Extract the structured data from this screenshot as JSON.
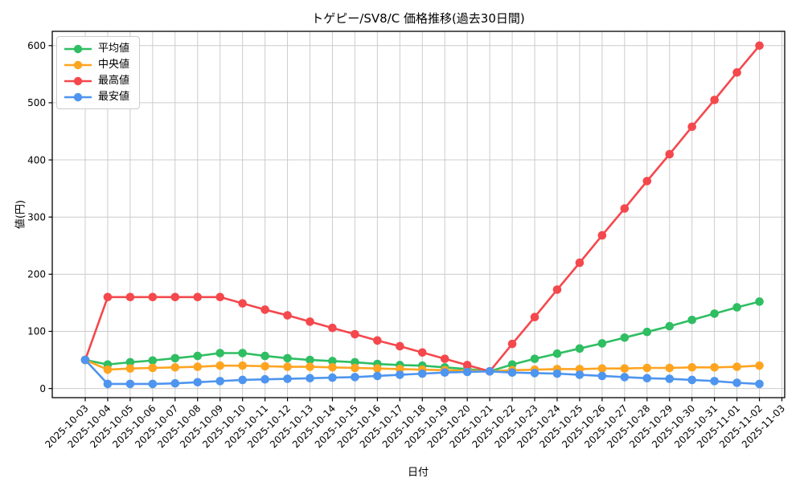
{
  "chart_data": {
    "type": "line",
    "title": "トゲピー/SV8/C 価格推移(過去30日間)",
    "xlabel": "日付",
    "ylabel": "値(円)",
    "grid": true,
    "legend_position": "upper left",
    "yticks": [
      0,
      100,
      200,
      300,
      400,
      500,
      600
    ],
    "ylim": [
      -16,
      625
    ],
    "x_tick_labels": [
      "2025-10-03",
      "2025-10-04",
      "2025-10-05",
      "2025-10-06",
      "2025-10-07",
      "2025-10-08",
      "2025-10-09",
      "2025-10-10",
      "2025-10-11",
      "2025-10-12",
      "2025-10-13",
      "2025-10-14",
      "2025-10-15",
      "2025-10-16",
      "2025-10-17",
      "2025-10-18",
      "2025-10-19",
      "2025-10-20",
      "2025-10-21",
      "2025-10-22",
      "2025-10-23",
      "2025-10-24",
      "2025-10-25",
      "2025-10-26",
      "2025-10-27",
      "2025-10-28",
      "2025-10-29",
      "2025-10-30",
      "2025-10-31",
      "2025-11-01",
      "2025-11-02",
      "2025-11-03"
    ],
    "categories": [
      "2025-10-03",
      "2025-10-04",
      "2025-10-05",
      "2025-10-06",
      "2025-10-07",
      "2025-10-08",
      "2025-10-09",
      "2025-10-10",
      "2025-10-11",
      "2025-10-12",
      "2025-10-13",
      "2025-10-14",
      "2025-10-15",
      "2025-10-16",
      "2025-10-17",
      "2025-10-18",
      "2025-10-19",
      "2025-10-20",
      "2025-10-21",
      "2025-10-22",
      "2025-10-23",
      "2025-10-24",
      "2025-10-25",
      "2025-10-26",
      "2025-10-27",
      "2025-10-28",
      "2025-10-29",
      "2025-10-30",
      "2025-10-31",
      "2025-11-01",
      "2025-11-02"
    ],
    "series": [
      {
        "name": "平均値",
        "color": "#2fbe62",
        "values": [
          50,
          42,
          46,
          49,
          53,
          57,
          62,
          62,
          57,
          53,
          50,
          48,
          46,
          43,
          41,
          40,
          37,
          34,
          30,
          42,
          52,
          61,
          70,
          79,
          89,
          99,
          109,
          120,
          131,
          142,
          152
        ]
      },
      {
        "name": "中央値",
        "color": "#ffa421",
        "values": [
          50,
          33,
          35,
          36,
          37,
          38,
          40,
          40,
          39,
          38,
          38,
          37,
          36,
          35,
          34,
          33,
          32,
          31,
          30,
          32,
          33,
          34,
          34,
          35,
          35,
          36,
          36,
          37,
          37,
          38,
          40
        ]
      },
      {
        "name": "最高値",
        "color": "#f4484d",
        "values": [
          50,
          160,
          160,
          160,
          160,
          160,
          160,
          149,
          138,
          128,
          117,
          106,
          95,
          84,
          74,
          63,
          52,
          41,
          30,
          78,
          125,
          173,
          220,
          268,
          315,
          363,
          410,
          458,
          505,
          553,
          600
        ]
      },
      {
        "name": "最安値",
        "color": "#4e95ef",
        "values": [
          50,
          8,
          8,
          8,
          9,
          11,
          13,
          15,
          16,
          17,
          18,
          19,
          20,
          22,
          24,
          26,
          28,
          29,
          30,
          28,
          27,
          26,
          24,
          22,
          20,
          18,
          17,
          15,
          13,
          10,
          8
        ]
      }
    ],
    "grid_color": "#cccccc",
    "axis_color": "#000000"
  }
}
